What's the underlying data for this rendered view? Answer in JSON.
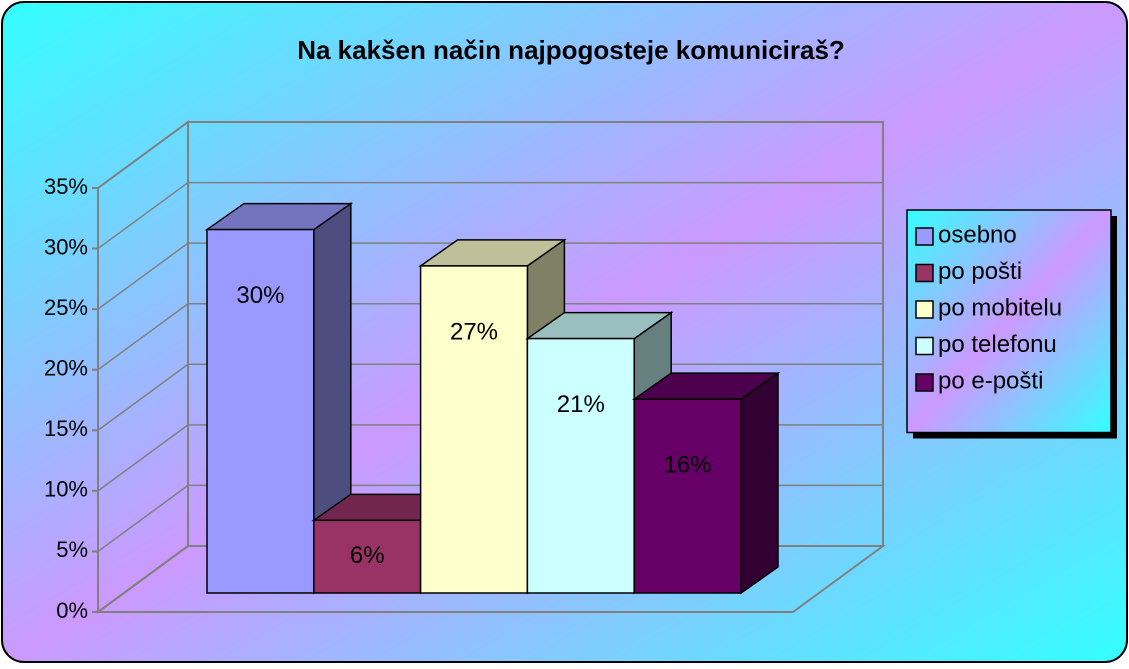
{
  "chart_data": {
    "type": "bar3d",
    "title": "Na kakšen način najpogosteje komuniciraš?",
    "series": [
      {
        "name": "osebno",
        "color": "#9999ff",
        "values": [
          30
        ],
        "value_labels": [
          "30%"
        ]
      },
      {
        "name": "po pošti",
        "color": "#993366",
        "values": [
          6
        ],
        "value_labels": [
          "6%"
        ]
      },
      {
        "name": "po mobitelu",
        "color": "#ffffcc",
        "values": [
          27
        ],
        "value_labels": [
          "27%"
        ]
      },
      {
        "name": "po telefonu",
        "color": "#ccffff",
        "values": [
          21
        ],
        "value_labels": [
          "21%"
        ]
      },
      {
        "name": "po e-pošti",
        "color": "#660066",
        "values": [
          16
        ],
        "value_labels": [
          "16%"
        ]
      }
    ],
    "ylim": [
      0,
      35
    ],
    "yticks": [
      {
        "value": 0,
        "label": "0%"
      },
      {
        "value": 5,
        "label": "5%"
      },
      {
        "value": 10,
        "label": "10%"
      },
      {
        "value": 15,
        "label": "15%"
      },
      {
        "value": 20,
        "label": "20%"
      },
      {
        "value": 25,
        "label": "25%"
      },
      {
        "value": 30,
        "label": "30%"
      },
      {
        "value": 35,
        "label": "35%"
      }
    ],
    "grid": true,
    "legend": "right"
  }
}
